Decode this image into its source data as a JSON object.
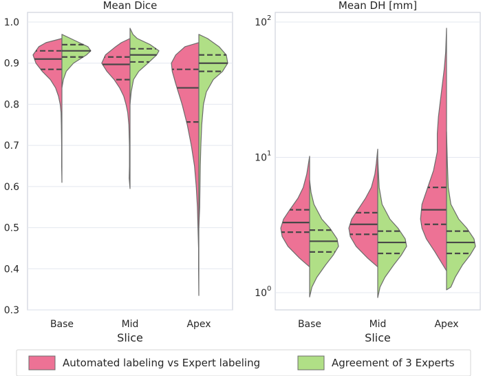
{
  "colors": {
    "pink": "#ed7295",
    "green": "#b0df86",
    "grid": "#e3e7ef",
    "axis": "#cfd3db",
    "violin_edge": "#6b6b6b",
    "quartile": "#474747"
  },
  "legend": {
    "items": [
      {
        "label": "Automated labeling vs Expert labeling",
        "color": "#ed7295"
      },
      {
        "label": "Agreement of 3 Experts",
        "color": "#b0df86"
      }
    ]
  },
  "chart_data": [
    {
      "type": "violin",
      "split": true,
      "title": "Mean Dice",
      "xlabel": "Slice",
      "ylabel": "",
      "yscale": "linear",
      "ylim": [
        0.3,
        1.0
      ],
      "yticks": [
        0.3,
        0.4,
        0.5,
        0.6,
        0.7,
        0.8,
        0.9,
        1.0
      ],
      "ytick_labels": [
        "0.3",
        "0.4",
        "0.5",
        "0.6",
        "0.7",
        "0.8",
        "0.9",
        "1.0"
      ],
      "categories": [
        "Base",
        "Mid",
        "Apex"
      ],
      "series": [
        {
          "name": "Automated labeling vs Expert labeling",
          "color": "#ed7295",
          "groups": [
            {
              "min": 0.61,
              "max": 0.96,
              "quartiles": [
                0.885,
                0.91,
                0.93
              ],
              "profile": [
                [
                  0.61,
                  0.0
                ],
                [
                  0.65,
                  0.01
                ],
                [
                  0.7,
                  0.01
                ],
                [
                  0.75,
                  0.02
                ],
                [
                  0.78,
                  0.03
                ],
                [
                  0.8,
                  0.06
                ],
                [
                  0.82,
                  0.12
                ],
                [
                  0.84,
                  0.22
                ],
                [
                  0.86,
                  0.4
                ],
                [
                  0.88,
                  0.68
                ],
                [
                  0.9,
                  0.9
                ],
                [
                  0.92,
                  1.0
                ],
                [
                  0.94,
                  0.8
                ],
                [
                  0.95,
                  0.55
                ],
                [
                  0.96,
                  0.0
                ]
              ]
            },
            {
              "min": 0.595,
              "max": 0.96,
              "quartiles": [
                0.86,
                0.897,
                0.915
              ],
              "profile": [
                [
                  0.595,
                  0.0
                ],
                [
                  0.62,
                  0.03
                ],
                [
                  0.65,
                  0.02
                ],
                [
                  0.7,
                  0.02
                ],
                [
                  0.75,
                  0.04
                ],
                [
                  0.78,
                  0.08
                ],
                [
                  0.8,
                  0.14
                ],
                [
                  0.82,
                  0.22
                ],
                [
                  0.84,
                  0.36
                ],
                [
                  0.86,
                  0.55
                ],
                [
                  0.88,
                  0.8
                ],
                [
                  0.9,
                  0.98
                ],
                [
                  0.92,
                  0.85
                ],
                [
                  0.94,
                  0.5
                ],
                [
                  0.95,
                  0.3
                ],
                [
                  0.96,
                  0.0
                ]
              ]
            },
            {
              "min": 0.335,
              "max": 0.95,
              "quartiles": [
                0.757,
                0.84,
                0.885
              ],
              "profile": [
                [
                  0.335,
                  0.0
                ],
                [
                  0.4,
                  0.01
                ],
                [
                  0.45,
                  0.01
                ],
                [
                  0.5,
                  0.03
                ],
                [
                  0.55,
                  0.05
                ],
                [
                  0.6,
                  0.09
                ],
                [
                  0.65,
                  0.15
                ],
                [
                  0.7,
                  0.26
                ],
                [
                  0.75,
                  0.4
                ],
                [
                  0.8,
                  0.58
                ],
                [
                  0.85,
                  0.8
                ],
                [
                  0.88,
                  0.92
                ],
                [
                  0.9,
                  0.95
                ],
                [
                  0.92,
                  0.8
                ],
                [
                  0.94,
                  0.48
                ],
                [
                  0.95,
                  0.0
                ]
              ]
            }
          ]
        },
        {
          "name": "Agreement of 3 Experts",
          "color": "#b0df86",
          "groups": [
            {
              "min": 0.84,
              "max": 0.97,
              "quartiles": [
                0.915,
                0.93,
                0.945
              ],
              "profile": [
                [
                  0.84,
                  0.0
                ],
                [
                  0.86,
                  0.05
                ],
                [
                  0.88,
                  0.15
                ],
                [
                  0.9,
                  0.4
                ],
                [
                  0.92,
                  0.85
                ],
                [
                  0.93,
                  1.0
                ],
                [
                  0.94,
                  0.9
                ],
                [
                  0.95,
                  0.6
                ],
                [
                  0.96,
                  0.3
                ],
                [
                  0.97,
                  0.0
                ]
              ]
            },
            {
              "min": 0.8,
              "max": 0.985,
              "quartiles": [
                0.903,
                0.92,
                0.935
              ],
              "profile": [
                [
                  0.8,
                  0.0
                ],
                [
                  0.83,
                  0.04
                ],
                [
                  0.86,
                  0.12
                ],
                [
                  0.88,
                  0.3
                ],
                [
                  0.9,
                  0.62
                ],
                [
                  0.92,
                  0.92
                ],
                [
                  0.93,
                  1.0
                ],
                [
                  0.945,
                  0.7
                ],
                [
                  0.96,
                  0.25
                ],
                [
                  0.97,
                  0.1
                ],
                [
                  0.985,
                  0.0
                ]
              ]
            },
            {
              "min": 0.5,
              "max": 0.97,
              "quartiles": [
                0.88,
                0.9,
                0.92
              ],
              "profile": [
                [
                  0.5,
                  0.0
                ],
                [
                  0.55,
                  0.03
                ],
                [
                  0.6,
                  0.04
                ],
                [
                  0.65,
                  0.05
                ],
                [
                  0.7,
                  0.07
                ],
                [
                  0.75,
                  0.1
                ],
                [
                  0.8,
                  0.16
                ],
                [
                  0.83,
                  0.26
                ],
                [
                  0.86,
                  0.5
                ],
                [
                  0.88,
                  0.82
                ],
                [
                  0.9,
                  1.0
                ],
                [
                  0.92,
                  0.95
                ],
                [
                  0.94,
                  0.7
                ],
                [
                  0.96,
                  0.3
                ],
                [
                  0.97,
                  0.0
                ]
              ]
            }
          ]
        }
      ]
    },
    {
      "type": "violin",
      "split": true,
      "title": "Mean DH [mm]",
      "xlabel": "Slice",
      "ylabel": "",
      "yscale": "log",
      "ylim": [
        0.75,
        115
      ],
      "yticks": [
        1,
        10,
        100
      ],
      "ytick_labels": [
        "10",
        "10",
        "10"
      ],
      "ytick_exponents": [
        "0",
        "1",
        "2"
      ],
      "categories": [
        "Base",
        "Mid",
        "Apex"
      ],
      "series": [
        {
          "name": "Automated labeling vs Expert labeling",
          "color": "#ed7295",
          "groups": [
            {
              "min": 1.55,
              "max": 10.2,
              "quartiles": [
                2.8,
                3.3,
                4.1
              ],
              "profile": [
                [
                  1.55,
                  0.0
                ],
                [
                  1.8,
                  0.35
                ],
                [
                  2.2,
                  0.75
                ],
                [
                  2.6,
                  0.95
                ],
                [
                  3.0,
                  1.0
                ],
                [
                  3.5,
                  0.9
                ],
                [
                  4.0,
                  0.72
                ],
                [
                  5.0,
                  0.4
                ],
                [
                  6.0,
                  0.22
                ],
                [
                  7.5,
                  0.1
                ],
                [
                  9.0,
                  0.04
                ],
                [
                  10.2,
                  0.0
                ]
              ]
            },
            {
              "min": 1.55,
              "max": 11.5,
              "quartiles": [
                2.7,
                3.2,
                3.9
              ],
              "profile": [
                [
                  1.55,
                  0.0
                ],
                [
                  1.8,
                  0.35
                ],
                [
                  2.2,
                  0.75
                ],
                [
                  2.6,
                  0.95
                ],
                [
                  3.0,
                  1.0
                ],
                [
                  3.5,
                  0.9
                ],
                [
                  4.0,
                  0.72
                ],
                [
                  5.0,
                  0.42
                ],
                [
                  6.0,
                  0.22
                ],
                [
                  7.5,
                  0.1
                ],
                [
                  9.0,
                  0.05
                ],
                [
                  11.5,
                  0.0
                ]
              ]
            },
            {
              "min": 1.45,
              "max": 90,
              "quartiles": [
                3.2,
                4.1,
                6.0
              ],
              "profile": [
                [
                  1.45,
                  0.0
                ],
                [
                  2.0,
                  0.4
                ],
                [
                  2.5,
                  0.7
                ],
                [
                  3.0,
                  0.85
                ],
                [
                  3.5,
                  0.9
                ],
                [
                  4.5,
                  0.85
                ],
                [
                  6.0,
                  0.65
                ],
                [
                  8.0,
                  0.45
                ],
                [
                  11,
                  0.32
                ],
                [
                  15,
                  0.32
                ],
                [
                  20,
                  0.28
                ],
                [
                  30,
                  0.18
                ],
                [
                  45,
                  0.08
                ],
                [
                  60,
                  0.03
                ],
                [
                  90,
                  0.0
                ]
              ]
            }
          ]
        },
        {
          "name": "Agreement of 3 Experts",
          "color": "#b0df86",
          "groups": [
            {
              "min": 0.93,
              "max": 6.8,
              "quartiles": [
                2.0,
                2.4,
                2.9
              ],
              "profile": [
                [
                  0.93,
                  0.0
                ],
                [
                  1.1,
                  0.08
                ],
                [
                  1.3,
                  0.25
                ],
                [
                  1.6,
                  0.55
                ],
                [
                  1.9,
                  0.82
                ],
                [
                  2.2,
                  1.0
                ],
                [
                  2.5,
                  0.95
                ],
                [
                  3.0,
                  0.7
                ],
                [
                  3.5,
                  0.42
                ],
                [
                  4.5,
                  0.15
                ],
                [
                  5.5,
                  0.05
                ],
                [
                  6.8,
                  0.0
                ]
              ]
            },
            {
              "min": 0.92,
              "max": 9.8,
              "quartiles": [
                1.95,
                2.35,
                2.85
              ],
              "profile": [
                [
                  0.92,
                  0.0
                ],
                [
                  1.1,
                  0.08
                ],
                [
                  1.3,
                  0.25
                ],
                [
                  1.6,
                  0.55
                ],
                [
                  1.9,
                  0.82
                ],
                [
                  2.2,
                  1.0
                ],
                [
                  2.5,
                  0.95
                ],
                [
                  3.0,
                  0.7
                ],
                [
                  3.5,
                  0.42
                ],
                [
                  4.5,
                  0.15
                ],
                [
                  6.0,
                  0.05
                ],
                [
                  9.8,
                  0.0
                ]
              ]
            },
            {
              "min": 1.05,
              "max": 15.5,
              "quartiles": [
                1.95,
                2.35,
                2.85
              ],
              "profile": [
                [
                  1.05,
                  0.0
                ],
                [
                  1.1,
                  0.15
                ],
                [
                  1.3,
                  0.3
                ],
                [
                  1.6,
                  0.55
                ],
                [
                  1.9,
                  0.82
                ],
                [
                  2.2,
                  1.0
                ],
                [
                  2.5,
                  0.95
                ],
                [
                  3.0,
                  0.7
                ],
                [
                  3.5,
                  0.42
                ],
                [
                  4.5,
                  0.15
                ],
                [
                  6.0,
                  0.06
                ],
                [
                  9.0,
                  0.03
                ],
                [
                  15.5,
                  0.0
                ]
              ]
            }
          ]
        }
      ]
    }
  ]
}
